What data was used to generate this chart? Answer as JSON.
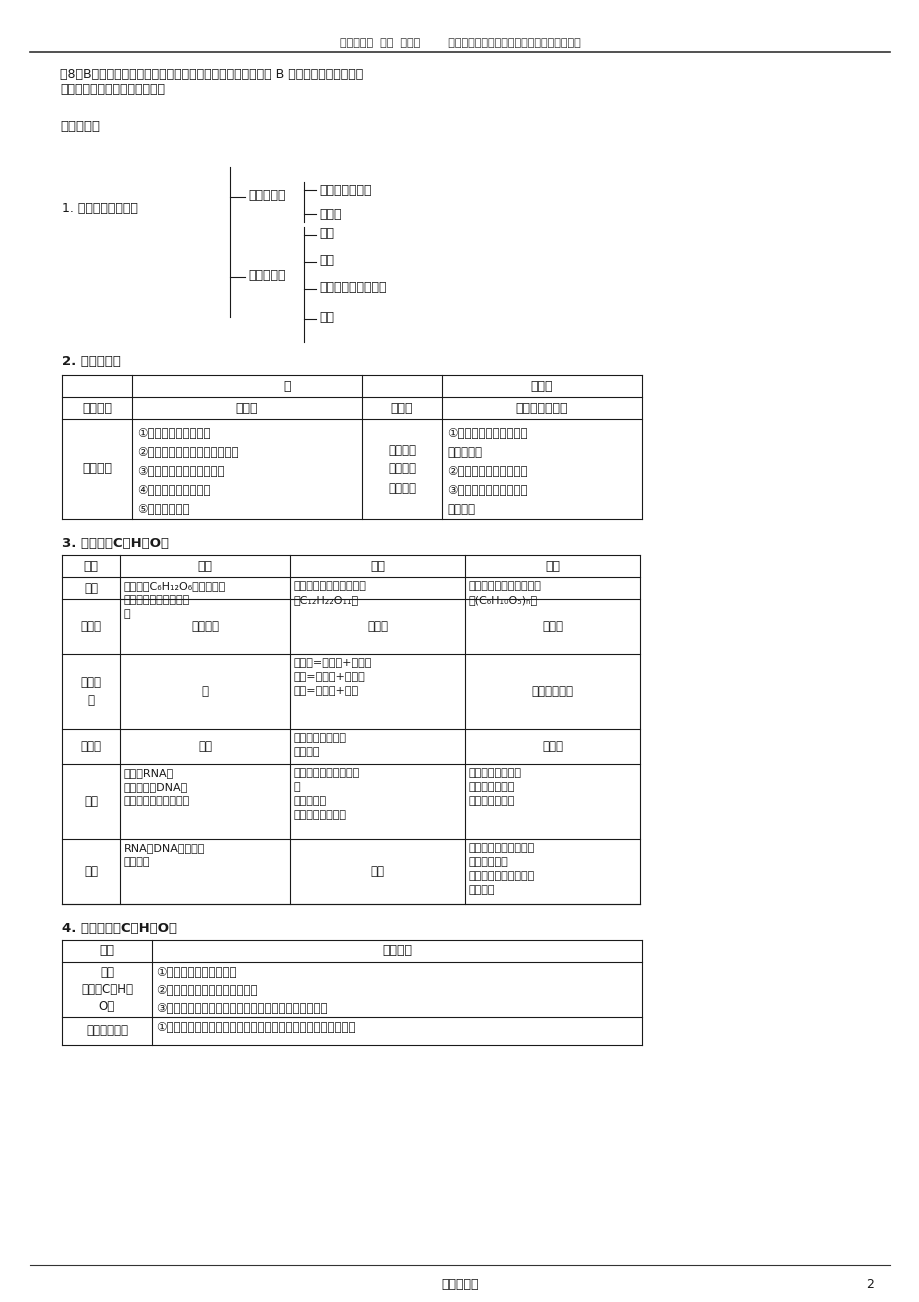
{
  "page_bg": "#ffffff",
  "text_color": "#1a1a1a",
  "header_text": "作者：贵州  贵阳  朱伟民        版权所有，禁止转载和上传至其他任何网站！",
  "footer_text": "细胞生物学",
  "footer_page": "2",
  "section8_text": "（8）B：能够促进花粉的萌发和花粉管的伸长。当植物体内缺 B 时，花药和花丝萎缩，\n花粉发育不良，影响受精过程。",
  "section2_title": "二、化合物",
  "tree_label": "1. 构成细胞的化合物",
  "inorganic_label": "无机化合物",
  "organic_label": "有机化合物",
  "inorganic_items": [
    "水（含量最高）",
    "无机盐"
  ],
  "organic_items": [
    "糖类",
    "脂质",
    "蛋白质（含量最高）",
    "核酸"
  ],
  "section2_water": "2. 水和无机盐",
  "water_table": {
    "header": [
      "",
      "水",
      "",
      "无机盐"
    ],
    "subheader": [
      "存在形式",
      "自由水",
      "结合水",
      "（大多数）离子"
    ],
    "row1_label": "生理作用",
    "free_water_content": "①是细胞内良好的溶剂\n②参与生物体内的许多生化反应\n③运输营养物质和代谢废物\n④为细胞提供液体环境\n⑤调节生物体温",
    "bound_water_content": "是细胞结\n构的重要\n组成成分",
    "inorganic_salt_content": "①细胞内某些复杂化合物\n的组成成分\n②维持生物体的生命活动\n③维持细胞的酸碱平衡及\n离子平衡"
  },
  "section3_title": "3. 糖类（仅C、H、O）",
  "sugar_table": {
    "headers": [
      "类别",
      "单糖",
      "二糖",
      "多糖"
    ],
    "row_names": [
      "举例",
      "水解性",
      "水解产\n物",
      "还原性",
      "存在",
      "功能"
    ],
    "monosaccharide_example": "葡萄糖（C₆H₁₂O₆）、核糖、\n脱氧核糖、果糖、半乳\n糖",
    "disaccharide_example": "蔗糖、麦芽糖、乳糖（均\n为C₁₂H₂₂O₁₁）",
    "polysaccharide_example": "淀粉、糖元、纤维素（均\n为(C₆H₁₀O₅)ₙ）",
    "mono_hydrolysis": "不能水解",
    "di_hydrolysis": "能水解",
    "poly_hydrolysis": "能水解",
    "mono_products": "无",
    "di_products": "麦芽糖=葡萄糖+葡萄糖\n乳糖=葡萄糖+半乳糖\n蔗糖=葡萄糖+果糖",
    "poly_products": "都产生葡萄糖",
    "mono_reducing": "都有",
    "di_reducing": "有：麦芽糖、乳糖\n无：蔗糖",
    "poly_reducing": "都没有",
    "mono_exist": "核糖：RNA中\n脱氧核糖：DNA中\n葡萄糖：动植物细胞中",
    "di_exist": "麦芽糖：发芽大麦、啤\n酒\n乳糖：乳汁\n蔗糖：甘蔗、甜菜",
    "poly_exist": "淀粉：谷类、薯类\n纤维素：细胞壁\n糖元：肝、肌肉",
    "mono_function": "RNA、DNA的成分；\n能源物质",
    "di_function": "供能",
    "poly_function": "植物：细胞储能物质、\n细胞壁的成分\n动物：调节血糖、氧化\n分解供能"
  },
  "section4_title": "4. 脂质（主要C、H、O）",
  "lipid_table": {
    "headers": [
      "种类",
      "生理功能"
    ],
    "row1_type": "脂肪\n（只含C、H、\nO）",
    "row1_func": "①细胞内良好的储能物质\n②减少热量损失，维持体温恒定\n③减少内脏器官之间的摩擦，具有缓冲外界压力的作用",
    "row2_type": "类脂（磷脂）",
    "row2_func": "①是构成细胞膜、线粒体膜、叶绿体膜等结构的重要成分（一切"
  }
}
